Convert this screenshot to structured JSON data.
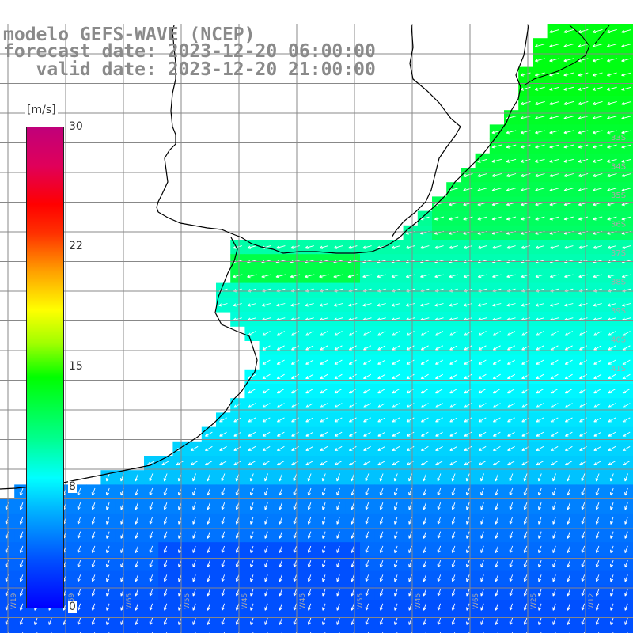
{
  "title": {
    "line1": "modelo GEFS-WAVE (NCEP)",
    "line2": "forecast date: 2023-12-20 06:00:00",
    "line3": "   valid date: 2023-12-20 21:00:00"
  },
  "colorbar": {
    "unit": "[m/s]",
    "ticks": [
      {
        "label": "30",
        "value": 30
      },
      {
        "label": "22",
        "value": 22
      },
      {
        "label": "15",
        "value": 15
      },
      {
        "label": "8",
        "value": 8
      },
      {
        "label": "0",
        "value": 0
      }
    ],
    "range": [
      0,
      30
    ]
  },
  "lat_labels": [
    "33S",
    "34S",
    "35S",
    "36S",
    "37S",
    "38S",
    "39S",
    "40S",
    "41S"
  ],
  "lon_labels": [
    "W19",
    "W59",
    "W65",
    "W55",
    "W45",
    "W45",
    "W55",
    "W45",
    "W65",
    "W25",
    "W12"
  ],
  "colors": {
    "land": "#ffffff",
    "coast": "#000000",
    "grid": "#888888",
    "arrow": "#ffffff",
    "title": "#8a8a8a"
  }
}
